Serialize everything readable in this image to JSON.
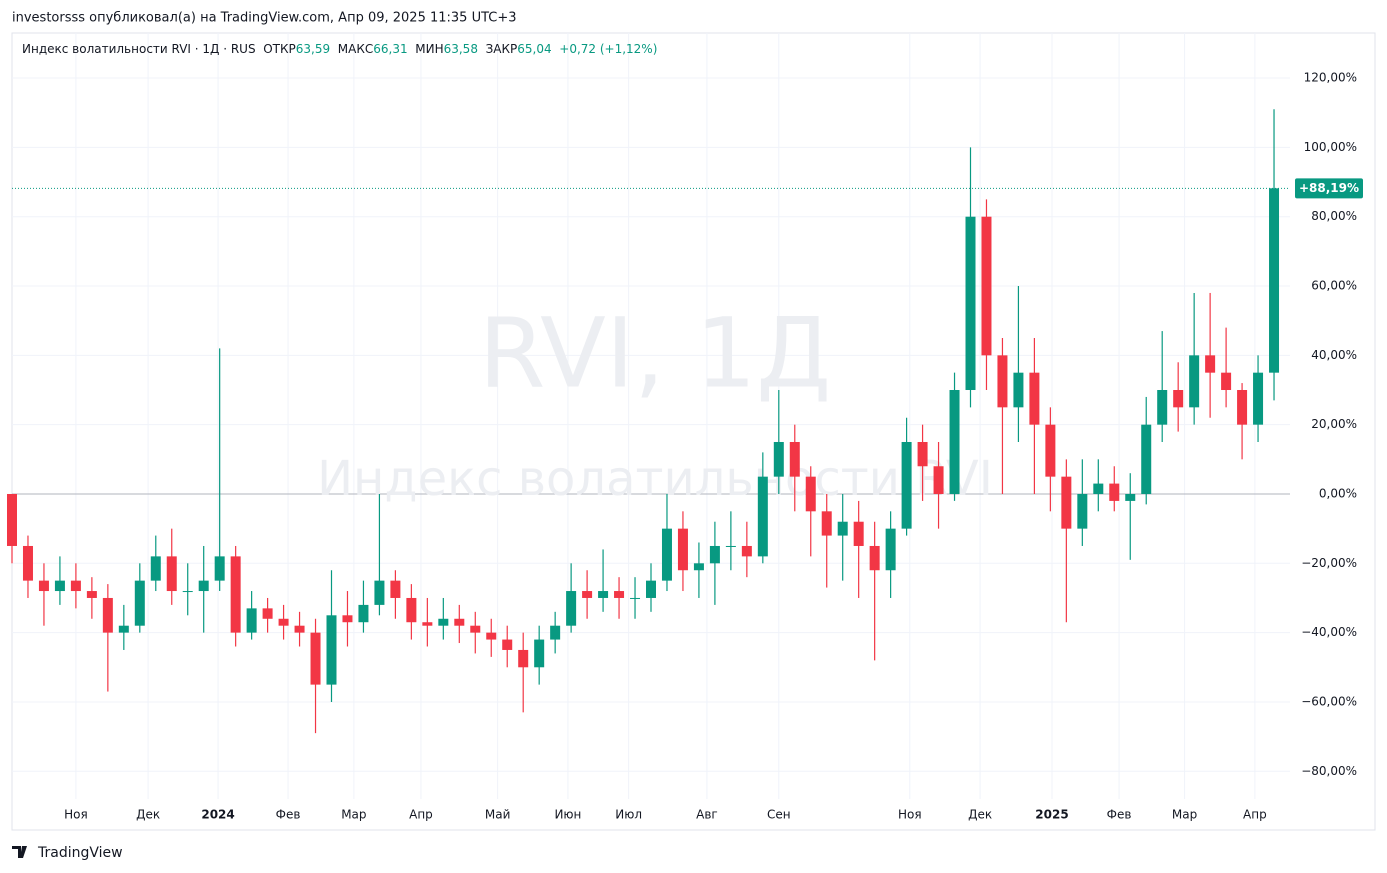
{
  "header": {
    "text": "investorsss опубликовал(а) на TradingView.com, Апр 09, 2025 11:35 UTC+3"
  },
  "chart_data": {
    "type": "candlestick",
    "legend_info": {
      "symbol": "Индекс волатильности RVI · 1Д · RUS",
      "open_label": "ОТКР",
      "open": "63,59",
      "high_label": "МАКС",
      "high": "66,31",
      "low_label": "МИН",
      "low": "63,58",
      "close_label": "ЗАКР",
      "close": "65,04",
      "change": "+0,72 (+1,12%)"
    },
    "watermark": [
      "RVI, 1Д",
      "Индекс волатильности RVI"
    ],
    "x": [
      0,
      5,
      10,
      15,
      20,
      25,
      30,
      35,
      40,
      45,
      50,
      55,
      60,
      65,
      70,
      75,
      80,
      85,
      90,
      95,
      100,
      105,
      110,
      115,
      120,
      125,
      130,
      135,
      140,
      145,
      150,
      155,
      160,
      165,
      170,
      175,
      180,
      185,
      190,
      195,
      200,
      205,
      210,
      215,
      220,
      225,
      230,
      235,
      240,
      245,
      250,
      255,
      260,
      265,
      270,
      275,
      280,
      285,
      290,
      295,
      300,
      305,
      310,
      315,
      320,
      325,
      330,
      335,
      340,
      345,
      350,
      355,
      360,
      365,
      370,
      375,
      380,
      385,
      390,
      395
    ],
    "open": [
      0,
      -15,
      -25,
      -28,
      -25,
      -28,
      -30,
      -40,
      -38,
      -25,
      -18,
      -28,
      -28,
      -25,
      -18,
      -40,
      -33,
      -36,
      -38,
      -40,
      -55,
      -35,
      -37,
      -32,
      -25,
      -30,
      -37,
      -38,
      -36,
      -38,
      -40,
      -42,
      -45,
      -50,
      -42,
      -38,
      -28,
      -30,
      -28,
      -30,
      -30,
      -25,
      -10,
      -22,
      -20,
      -15,
      -15,
      -18,
      5,
      15,
      5,
      -5,
      -12,
      -8,
      -15,
      -22,
      -10,
      15,
      8,
      0,
      30,
      80,
      40,
      25,
      35,
      20,
      5,
      -10,
      0,
      3,
      -2,
      0,
      20,
      30,
      25,
      40,
      35,
      30,
      20,
      35
    ],
    "high": [
      0,
      -12,
      -20,
      -18,
      -20,
      -24,
      -26,
      -32,
      -20,
      -12,
      -10,
      -20,
      -15,
      42,
      -15,
      -28,
      -30,
      -32,
      -34,
      -36,
      -22,
      -28,
      -25,
      0,
      -22,
      -26,
      -30,
      -30,
      -32,
      -34,
      -36,
      -38,
      -40,
      -38,
      -34,
      -20,
      -22,
      -16,
      -24,
      -24,
      -20,
      0,
      -5,
      -14,
      -8,
      -5,
      -8,
      12,
      30,
      20,
      8,
      0,
      0,
      -2,
      -8,
      -5,
      22,
      20,
      15,
      35,
      100,
      85,
      45,
      60,
      45,
      25,
      10,
      10,
      10,
      8,
      6,
      28,
      47,
      38,
      58,
      58,
      48,
      32,
      40,
      111
    ],
    "low": [
      -20,
      -30,
      -38,
      -32,
      -33,
      -36,
      -57,
      -45,
      -40,
      -28,
      -32,
      -35,
      -40,
      -28,
      -44,
      -42,
      -40,
      -42,
      -44,
      -69,
      -60,
      -44,
      -40,
      -35,
      -36,
      -42,
      -44,
      -42,
      -43,
      -46,
      -47,
      -50,
      -63,
      -55,
      -46,
      -40,
      -36,
      -34,
      -36,
      -36,
      -34,
      -28,
      -28,
      -30,
      -32,
      -22,
      -24,
      -20,
      0,
      -5,
      -18,
      -27,
      -25,
      -30,
      -48,
      -30,
      -12,
      -2,
      -10,
      -2,
      25,
      30,
      0,
      15,
      0,
      -5,
      -37,
      -15,
      -5,
      -5,
      -19,
      -3,
      15,
      18,
      20,
      22,
      25,
      10,
      15,
      27
    ],
    "close": [
      -15,
      -25,
      -28,
      -25,
      -28,
      -30,
      -40,
      -38,
      -25,
      -18,
      -28,
      -28,
      -25,
      -18,
      -40,
      -33,
      -36,
      -38,
      -40,
      -55,
      -35,
      -37,
      -32,
      -25,
      -30,
      -37,
      -38,
      -36,
      -38,
      -40,
      -42,
      -45,
      -50,
      -42,
      -38,
      -28,
      -30,
      -28,
      -30,
      -30,
      -25,
      -10,
      -22,
      -20,
      -15,
      -15,
      -18,
      5,
      15,
      5,
      -5,
      -12,
      -8,
      -15,
      -22,
      -10,
      15,
      8,
      0,
      30,
      80,
      40,
      25,
      35,
      20,
      5,
      -10,
      0,
      3,
      -2,
      0,
      20,
      30,
      25,
      40,
      35,
      30,
      20,
      35,
      88.19
    ],
    "up_color": "#089981",
    "down_color": "#f23645",
    "xlim": [
      0,
      400
    ],
    "ylim": [
      -88,
      133
    ],
    "xticks": [
      {
        "value": 20,
        "label": "Ноя"
      },
      {
        "value": 42.6,
        "label": "Дек"
      },
      {
        "value": 64.5,
        "label": "2024"
      },
      {
        "value": 86.4,
        "label": "Фев"
      },
      {
        "value": 107,
        "label": "Мар"
      },
      {
        "value": 128,
        "label": "Апр"
      },
      {
        "value": 152,
        "label": "Май"
      },
      {
        "value": 174,
        "label": "Июн"
      },
      {
        "value": 193,
        "label": "Июл"
      },
      {
        "value": 217.5,
        "label": "Авг"
      },
      {
        "value": 240,
        "label": "Сен"
      },
      {
        "value": 281,
        "label": "Ноя"
      },
      {
        "value": 303,
        "label": "Дек"
      },
      {
        "value": 325.5,
        "label": "2025"
      },
      {
        "value": 346.5,
        "label": "Фев"
      },
      {
        "value": 367,
        "label": "Мар"
      },
      {
        "value": 389,
        "label": "Апр"
      }
    ],
    "yticks": [
      {
        "value": 120,
        "label": "120,00%"
      },
      {
        "value": 100,
        "label": "100,00%"
      },
      {
        "value": 80,
        "label": "80,00%"
      },
      {
        "value": 60,
        "label": "60,00%"
      },
      {
        "value": 40,
        "label": "40,00%"
      },
      {
        "value": 20,
        "label": "20,00%"
      },
      {
        "value": 0,
        "label": "0,00%"
      },
      {
        "value": -20,
        "label": "−20,00%"
      },
      {
        "value": -40,
        "label": "−40,00%"
      },
      {
        "value": -60,
        "label": "−60,00%"
      },
      {
        "value": -80,
        "label": "−80,00%"
      }
    ],
    "grid": true,
    "last_price": {
      "value": 88.19,
      "label": "+88,19%"
    }
  },
  "footer": {
    "brand": "TradingView"
  }
}
